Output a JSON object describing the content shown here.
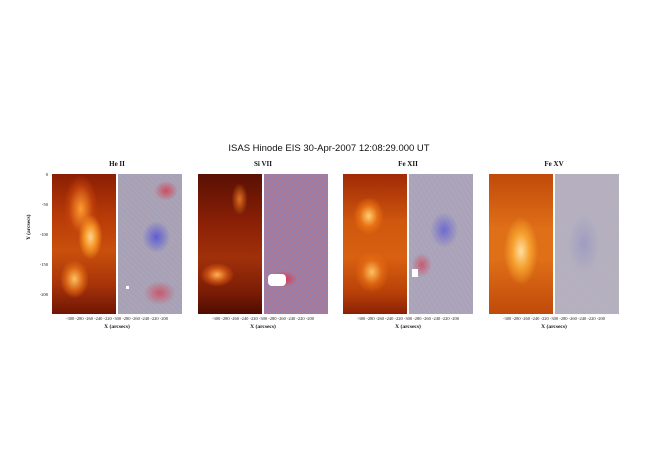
{
  "title": "ISAS Hinode  EIS 30-Apr-2007 12:08:29.000 UT",
  "y_axis_label": "Y (arcsecs)",
  "y_ticks": [
    "0",
    "-50",
    "-100",
    "-150",
    "-200"
  ],
  "panels": [
    {
      "label": "He II",
      "x_ticks_left": "-300 -280 -260 -240 -220",
      "x_ticks_right": "-300 -280 -260 -240 -220 -200",
      "x_axis_label": "X (arcsecs)"
    },
    {
      "label": "Si VII",
      "x_ticks_left": "-300 -280 -260 -240 -220",
      "x_ticks_right": "-300 -280 -260 -240 -220 -200",
      "x_axis_label": "X (arcsecs)"
    },
    {
      "label": "Fe XII",
      "x_ticks_left": "-300 -280 -260 -240 -220",
      "x_ticks_right": "-300 -280 -260 -240 -220 -200",
      "x_axis_label": "X (arcsecs)"
    },
    {
      "label": "Fe XV",
      "x_ticks_left": "-300 -280 -260 -240 -220",
      "x_ticks_right": "-300 -280 -260 -240 -220 -200",
      "x_axis_label": "X (arcsecs)"
    }
  ]
}
